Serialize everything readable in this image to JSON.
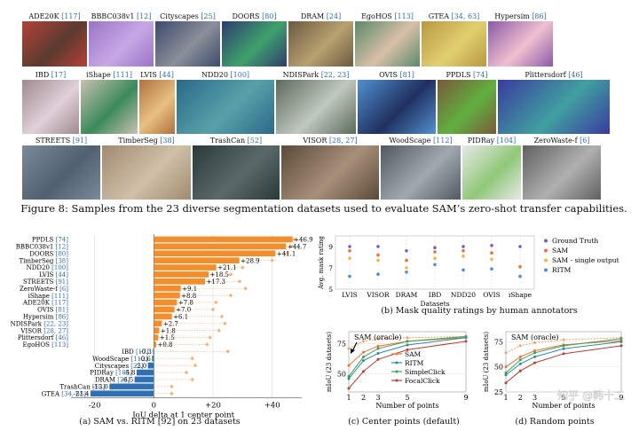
{
  "figure8": {
    "tiles": [
      {
        "name": "ADE20K",
        "ref": "[117]",
        "c1": "#b5423a",
        "c2": "#5a3a2f"
      },
      {
        "name": "BBBC038v1",
        "ref": "[12]",
        "c1": "#9b74c6",
        "c2": "#c7a7e6"
      },
      {
        "name": "Cityscapes",
        "ref": "[25]",
        "c1": "#3d4a6b",
        "c2": "#8a8f99"
      },
      {
        "name": "DOORS",
        "ref": "[80]",
        "c1": "#2d3d6e",
        "c2": "#3fa16b"
      },
      {
        "name": "DRAM",
        "ref": "[24]",
        "c1": "#6a5a40",
        "c2": "#b8a070"
      },
      {
        "name": "EgoHOS",
        "ref": "[113]",
        "c1": "#5a8a6a",
        "c2": "#d8c0a8"
      },
      {
        "name": "GTEA",
        "ref": "[34, 63]",
        "c1": "#b89840",
        "c2": "#e0d070"
      },
      {
        "name": "Hypersim",
        "ref": "[86]",
        "c1": "#8a5aa8",
        "c2": "#f0c0d0"
      },
      {
        "name": "IBD",
        "ref": "[17]",
        "c1": "#a08a90",
        "c2": "#e0d0d8"
      },
      {
        "name": "iShape",
        "ref": "[111]",
        "c1": "#c8c0b0",
        "c2": "#3a8a5a"
      },
      {
        "name": "LVIS",
        "ref": "[44]",
        "c1": "#b07040",
        "c2": "#e8c080"
      },
      {
        "name": "NDD20",
        "ref": "[100]",
        "c1": "#2a6a8a",
        "c2": "#58a0a8"
      },
      {
        "name": "NDISPark",
        "ref": "[22, 23]",
        "c1": "#5a6a5a",
        "c2": "#c0c8c0"
      },
      {
        "name": "OVIS",
        "ref": "[81]",
        "c1": "#5090d0",
        "c2": "#203060"
      },
      {
        "name": "PPDLS",
        "ref": "[74]",
        "c1": "#7a5a3a",
        "c2": "#60b040"
      },
      {
        "name": "Plittersdorf",
        "ref": "[46]",
        "c1": "#3a3aa0",
        "c2": "#40a0a0"
      },
      {
        "name": "STREETS",
        "ref": "[91]",
        "c1": "#7a8a98",
        "c2": "#506070"
      },
      {
        "name": "TimberSeg",
        "ref": "[38]",
        "c1": "#a08a70",
        "c2": "#d0c0a8"
      },
      {
        "name": "TrashCan",
        "ref": "[52]",
        "c1": "#2a3a3a",
        "c2": "#5a6a6a"
      },
      {
        "name": "VISOR",
        "ref": "[28, 27]",
        "c1": "#5a4a3a",
        "c2": "#a8907a"
      },
      {
        "name": "WoodScape",
        "ref": "[112]",
        "c1": "#505860",
        "c2": "#a0a8b0"
      },
      {
        "name": "PIDRay",
        "ref": "[104]",
        "c1": "#e8e8e8",
        "c2": "#90c878"
      },
      {
        "name": "ZeroWaste-f",
        "ref": "[6]",
        "c1": "#606060",
        "c2": "#b0b0b0"
      }
    ],
    "caption": "Figure 8: Samples from the 23 diverse segmentation datasets used to evaluate SAM’s zero-shot transfer capabilities."
  },
  "chart_data": [
    {
      "id": "a",
      "type": "bar",
      "orientation": "horizontal",
      "categories": [
        "PPDLS [74]",
        "BBBC038v1 [12]",
        "DOORS [80]",
        "TimberSeg [38]",
        "NDD20 [100]",
        "LVIS [44]",
        "STREETS [91]",
        "ZeroWaste-f [6]",
        "iShape [111]",
        "ADE20K [117]",
        "OVIS [81]",
        "Hypersim [86]",
        "NDISPark [22, 23]",
        "VISOR [28, 27]",
        "Plittersdorf [46]",
        "EgoHOS [113]",
        "IBD [17]",
        "WoodScape [112]",
        "Cityscapes [25]",
        "PIDRay [104]",
        "DRAM [24]",
        "TrashCan [52]",
        "GTEA [34, 63]"
      ],
      "values": [
        46.9,
        44.7,
        41.1,
        28.9,
        21.1,
        18.5,
        17.3,
        9.1,
        8.8,
        7.8,
        7.0,
        6.1,
        2.7,
        1.8,
        1.5,
        0.8,
        -0.3,
        -0.6,
        -2.0,
        -5.8,
        -6.5,
        -15.0,
        -21.4
      ],
      "value_labels": [
        "+46.9",
        "+44.7",
        "+41.1",
        "+28.9",
        "+21.1",
        "+18.5",
        "+17.3",
        "+9.1",
        "+8.8",
        "+7.8",
        "+7.0",
        "+6.1",
        "+2.7",
        "+1.8",
        "+1.5",
        "+0.8",
        "-0.3",
        "-0.6",
        "-2.0",
        "-5.8",
        "-6.5",
        "-15.0",
        "-21.4"
      ],
      "oracle_markers": [
        47.5,
        46.5,
        45.0,
        40.0,
        30.0,
        26.0,
        29.0,
        31.0,
        26.0,
        21.0,
        20.0,
        23.0,
        24.0,
        22.0,
        19.0,
        18.0,
        25.0,
        13.0,
        14.0,
        11.0,
        13.0,
        6.0,
        6.0
      ],
      "xticks": [
        -20,
        0,
        20,
        40
      ],
      "xtick_labels": [
        "-20",
        "0",
        "+20",
        "+40"
      ],
      "xlim": [
        -28,
        50
      ],
      "xlabel": "IoU delta at 1 center point",
      "caption": "(a) SAM vs. RITM [92] on 23 datasets",
      "colors": {
        "positive": "#f28e2b",
        "negative": "#2f6fb3",
        "oracle": "#f8b070"
      }
    },
    {
      "id": "b",
      "type": "scatter",
      "categories": [
        "LVIS",
        "VISOR",
        "DRAM",
        "IBD",
        "NDD20",
        "OVIS",
        "iShape"
      ],
      "series": [
        {
          "name": "Ground Truth",
          "color": "#7a5cc0",
          "values": [
            9.0,
            9.0,
            8.6,
            8.9,
            9.0,
            9.1,
            9.0
          ]
        },
        {
          "name": "SAM",
          "color": "#e8743b",
          "values": [
            8.6,
            8.2,
            7.7,
            8.5,
            8.6,
            8.4,
            7.1
          ]
        },
        {
          "name": "SAM - single output",
          "color": "#f2b644",
          "values": [
            7.9,
            7.7,
            7.0,
            7.9,
            8.1,
            7.8,
            6.2
          ]
        },
        {
          "name": "RITM",
          "color": "#4a90d9",
          "values": [
            6.2,
            6.4,
            6.6,
            7.3,
            6.8,
            6.9,
            6.2
          ]
        }
      ],
      "yticks": [
        5,
        7,
        9
      ],
      "ylim": [
        5,
        10
      ],
      "ylabel": "Avg. mask rating",
      "xlabel": "Datasets",
      "legend_position": "right",
      "caption": "(b) Mask quality ratings by human annotators"
    },
    {
      "id": "c",
      "type": "line",
      "x": [
        1,
        2,
        3,
        5,
        9
      ],
      "series": [
        {
          "name": "SAM",
          "color": "#e8743b",
          "values": [
            57,
            68,
            73,
            77,
            80
          ]
        },
        {
          "name": "RITM",
          "color": "#2f8aa0",
          "values": [
            46,
            61,
            67,
            74,
            80
          ]
        },
        {
          "name": "SimpleClick",
          "color": "#3aa05a",
          "values": [
            48,
            64,
            71,
            77,
            81
          ]
        },
        {
          "name": "FocalClick",
          "color": "#c0392b",
          "values": [
            38,
            52,
            62,
            70,
            77
          ]
        }
      ],
      "oracle": {
        "label": "SAM (oracle)",
        "color": "#f0a060",
        "values": [
          71,
          77,
          79,
          80,
          81
        ]
      },
      "xticks": [
        1,
        2,
        3,
        5,
        9
      ],
      "yticks": [
        50,
        75
      ],
      "ylim": [
        35,
        85
      ],
      "xlabel": "Number of points",
      "ylabel": "mIoU (23 datasets)",
      "legend_position": "lower-right",
      "caption": "(c) Center points (default)"
    },
    {
      "id": "d",
      "type": "line",
      "x": [
        1,
        2,
        3,
        5,
        9
      ],
      "series": [
        {
          "name": "SAM",
          "color": "#e8743b",
          "values": [
            50,
            60,
            66,
            72,
            76
          ]
        },
        {
          "name": "RITM",
          "color": "#2f8aa0",
          "values": [
            42,
            53,
            60,
            68,
            75
          ]
        },
        {
          "name": "SimpleClick",
          "color": "#3aa05a",
          "values": [
            44,
            57,
            64,
            71,
            78
          ]
        },
        {
          "name": "FocalClick",
          "color": "#c0392b",
          "values": [
            34,
            46,
            54,
            63,
            71
          ]
        }
      ],
      "oracle": {
        "label": "SAM (oracle)",
        "color": "#f0a060",
        "values": [
          64,
          71,
          74,
          77,
          79
        ]
      },
      "xticks": [
        1,
        2,
        3,
        5,
        9
      ],
      "yticks": [
        25,
        50,
        75
      ],
      "ylim": [
        25,
        85
      ],
      "xlabel": "Number of points",
      "ylabel": "mIoU (23 datasets)",
      "caption": "(d) Random points",
      "watermark": "知乎 @韩十二"
    }
  ]
}
